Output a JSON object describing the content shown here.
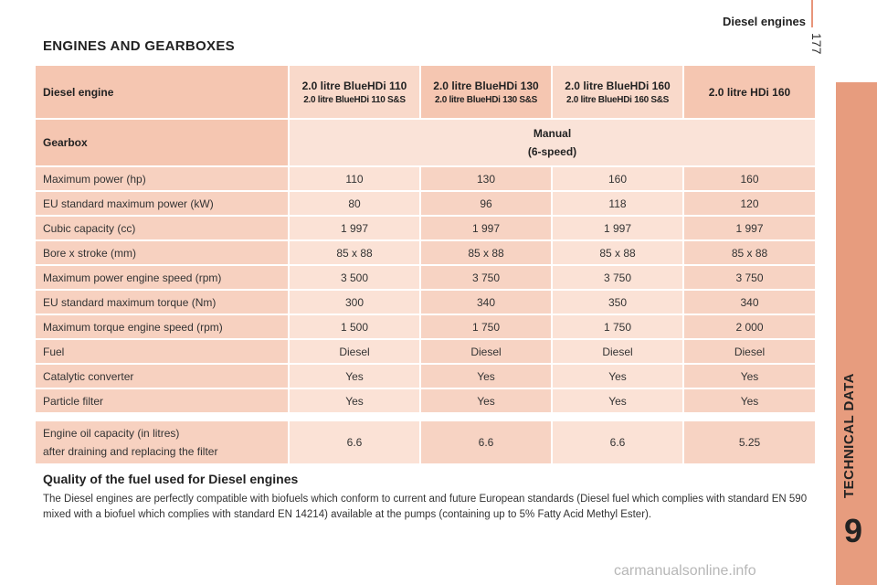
{
  "header": {
    "title": "Diesel engines",
    "page_number": "177"
  },
  "side": {
    "chapter_label": "TECHNICAL DATA",
    "chapter_number": "9"
  },
  "section_title": "ENGINES AND GEARBOXES",
  "table": {
    "engine_label": "Diesel engine",
    "engines": [
      {
        "name": "2.0 litre BlueHDi 110",
        "sub": "2.0 litre BlueHDi 110 S&S"
      },
      {
        "name": "2.0 litre BlueHDi 130",
        "sub": "2.0 litre BlueHDi 130 S&S"
      },
      {
        "name": "2.0 litre BlueHDi 160",
        "sub": "2.0 litre BlueHDi 160 S&S"
      },
      {
        "name": "2.0 litre HDi 160",
        "sub": ""
      }
    ],
    "gearbox_label": "Gearbox",
    "gearbox_value": "Manual",
    "gearbox_sub": "(6-speed)",
    "rows": [
      {
        "label": "Maximum power (hp)",
        "values": [
          "110",
          "130",
          "160",
          "160"
        ]
      },
      {
        "label": "EU standard maximum power (kW)",
        "values": [
          "80",
          "96",
          "118",
          "120"
        ]
      },
      {
        "label": "Cubic capacity (cc)",
        "values": [
          "1 997",
          "1 997",
          "1 997",
          "1 997"
        ]
      },
      {
        "label": "Bore x stroke (mm)",
        "values": [
          "85 x 88",
          "85 x 88",
          "85 x 88",
          "85 x 88"
        ]
      },
      {
        "label": "Maximum power engine speed (rpm)",
        "values": [
          "3 500",
          "3 750",
          "3 750",
          "3 750"
        ]
      },
      {
        "label": "EU standard maximum torque (Nm)",
        "values": [
          "300",
          "340",
          "350",
          "340"
        ]
      },
      {
        "label": "Maximum torque engine speed (rpm)",
        "values": [
          "1 500",
          "1 750",
          "1 750",
          "2 000"
        ]
      },
      {
        "label": "Fuel",
        "values": [
          "Diesel",
          "Diesel",
          "Diesel",
          "Diesel"
        ]
      },
      {
        "label": "Catalytic converter",
        "values": [
          "Yes",
          "Yes",
          "Yes",
          "Yes"
        ]
      },
      {
        "label": "Particle filter",
        "values": [
          "Yes",
          "Yes",
          "Yes",
          "Yes"
        ]
      }
    ]
  },
  "oil": {
    "label_line1": "Engine oil capacity (in litres)",
    "label_line2": "after draining and replacing the filter",
    "values": [
      "6.6",
      "6.6",
      "6.6",
      "5.25"
    ]
  },
  "fuel_quality": {
    "title": "Quality of the fuel used for Diesel engines",
    "text": "The Diesel engines are perfectly compatible with biofuels which conform to current and future European standards (Diesel fuel which complies with standard EN 590 mixed with a biofuel which complies with standard EN 14214) available at the pumps (containing up to 5% Fatty Acid Methyl Ester)."
  },
  "watermark": "carmanualsonline.info"
}
